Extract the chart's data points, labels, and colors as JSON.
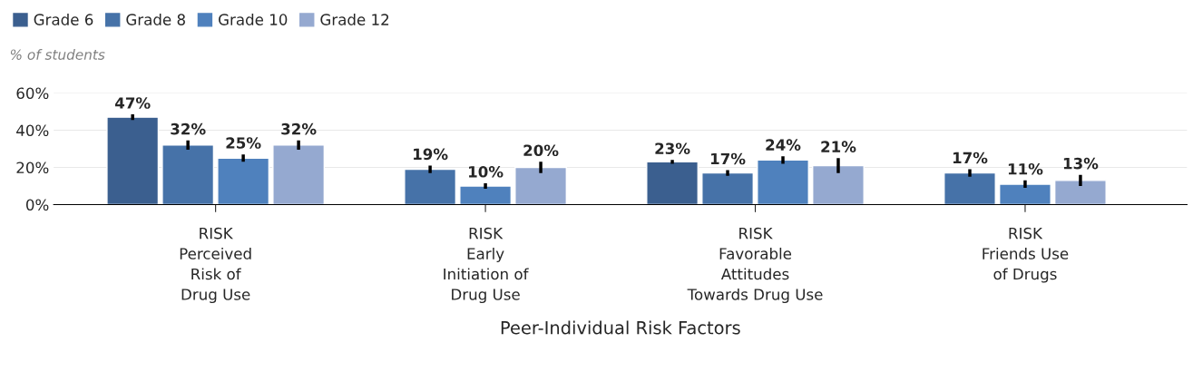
{
  "chart_data": {
    "type": "bar",
    "categories": [
      "RISK\nPerceived\nRisk of\nDrug Use",
      "RISK\nEarly\nInitiation of\nDrug Use",
      "RISK\nFavorable\nAttitudes\nTowards Drug Use",
      "RISK\nFriends Use\nof Drugs"
    ],
    "series": [
      {
        "name": "Grade 6",
        "color": "#3b5f8f",
        "values": [
          47,
          null,
          23,
          null
        ],
        "errors": [
          1.5,
          null,
          1,
          null
        ],
        "value_labels": [
          "47%",
          null,
          "23%",
          null
        ]
      },
      {
        "name": "Grade 8",
        "color": "#4672a8",
        "values": [
          32,
          19,
          17,
          17
        ],
        "errors": [
          2.5,
          2,
          1.5,
          2
        ],
        "value_labels": [
          "32%",
          "19%",
          "17%",
          "17%"
        ]
      },
      {
        "name": "Grade 10",
        "color": "#4f81bd",
        "values": [
          25,
          10,
          24,
          11
        ],
        "errors": [
          2,
          1.5,
          2,
          2
        ],
        "value_labels": [
          "25%",
          "10%",
          "24%",
          "11%"
        ]
      },
      {
        "name": "Grade 12",
        "color": "#95a9d0",
        "values": [
          32,
          20,
          21,
          13
        ],
        "errors": [
          2.5,
          3,
          4,
          3
        ],
        "value_labels": [
          "32%",
          "20%",
          "21%",
          "13%"
        ]
      }
    ],
    "ylabel": "% of students",
    "xlabel": "Peer-Individual Risk Factors",
    "ylim": [
      0,
      60
    ],
    "yticks": [
      {
        "value": 0,
        "label": "0%"
      },
      {
        "value": 20,
        "label": "20%"
      },
      {
        "value": 40,
        "label": "40%"
      },
      {
        "value": 60,
        "label": "60%"
      }
    ],
    "grid": "y",
    "legend": "top left"
  }
}
